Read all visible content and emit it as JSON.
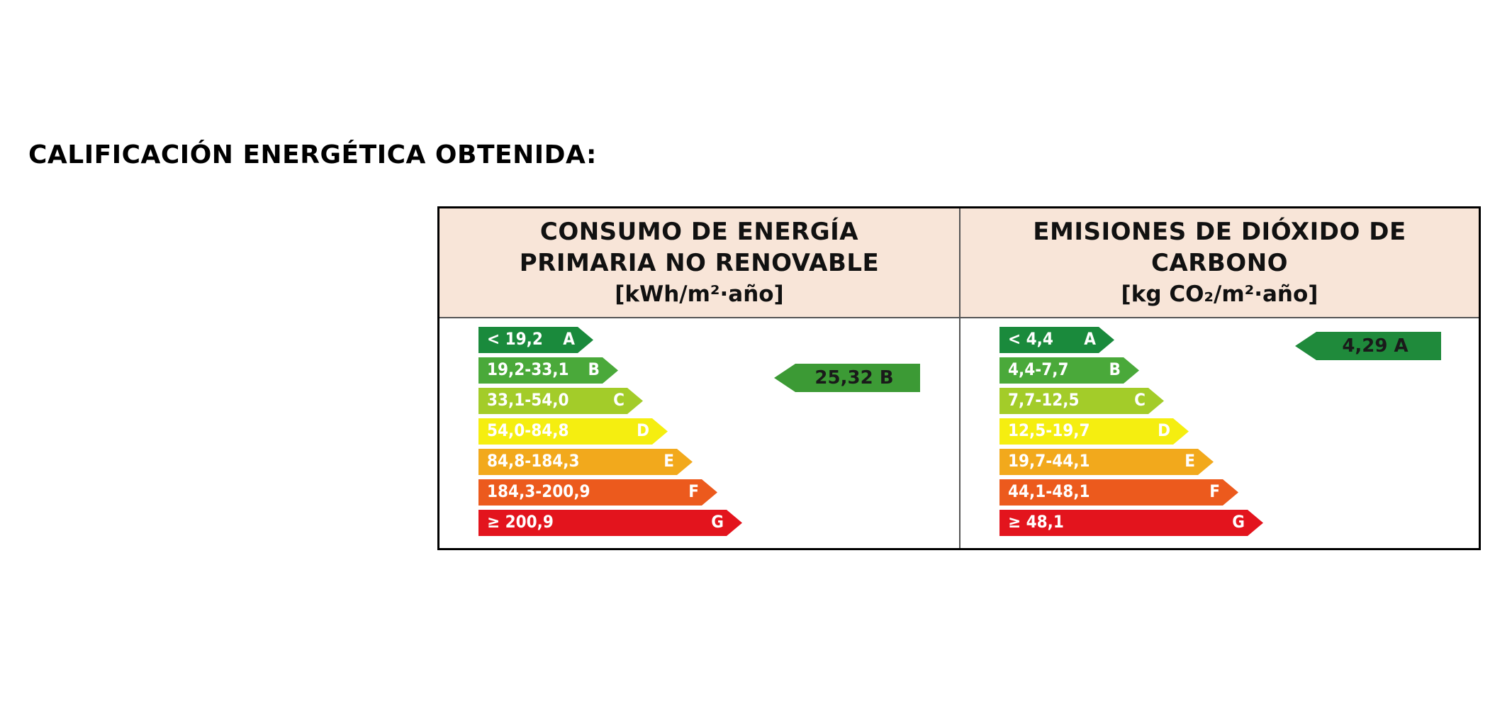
{
  "title": "CALIFICACIÓN ENERGÉTICA OBTENIDA:",
  "colors": {
    "A": "#1a8a3c",
    "B": "#4aa93a",
    "C": "#a3cc29",
    "D": "#f5ee10",
    "E": "#f2a91c",
    "F": "#ec5a1d",
    "G": "#e3141d"
  },
  "energy": {
    "heading_line1": "CONSUMO DE ENERGÍA",
    "heading_line2": "PRIMARIA NO RENOVABLE",
    "unit": "[kWh/m²·año]",
    "scale": [
      {
        "range": "< 19,2",
        "letter": "A"
      },
      {
        "range": "19,2-33,1",
        "letter": "B"
      },
      {
        "range": "33,1-54,0",
        "letter": "C"
      },
      {
        "range": "54,0-84,8",
        "letter": "D"
      },
      {
        "range": "84,8-184,3",
        "letter": "E"
      },
      {
        "range": "184,3-200,9",
        "letter": "F"
      },
      {
        "range": "≥ 200,9",
        "letter": "G"
      }
    ],
    "rating": {
      "value": "25,32",
      "letter": "B"
    }
  },
  "co2": {
    "heading_line1": "EMISIONES DE DIÓXIDO DE",
    "heading_line2": "CARBONO",
    "unit": "[kg CO₂/m²·año]",
    "scale": [
      {
        "range": "< 4,4",
        "letter": "A"
      },
      {
        "range": "4,4-7,7",
        "letter": "B"
      },
      {
        "range": "7,7-12,5",
        "letter": "C"
      },
      {
        "range": "12,5-19,7",
        "letter": "D"
      },
      {
        "range": "19,7-44,1",
        "letter": "E"
      },
      {
        "range": "44,1-48,1",
        "letter": "F"
      },
      {
        "range": "≥ 48,1",
        "letter": "G"
      }
    ],
    "rating": {
      "value": "4,29",
      "letter": "A"
    }
  }
}
